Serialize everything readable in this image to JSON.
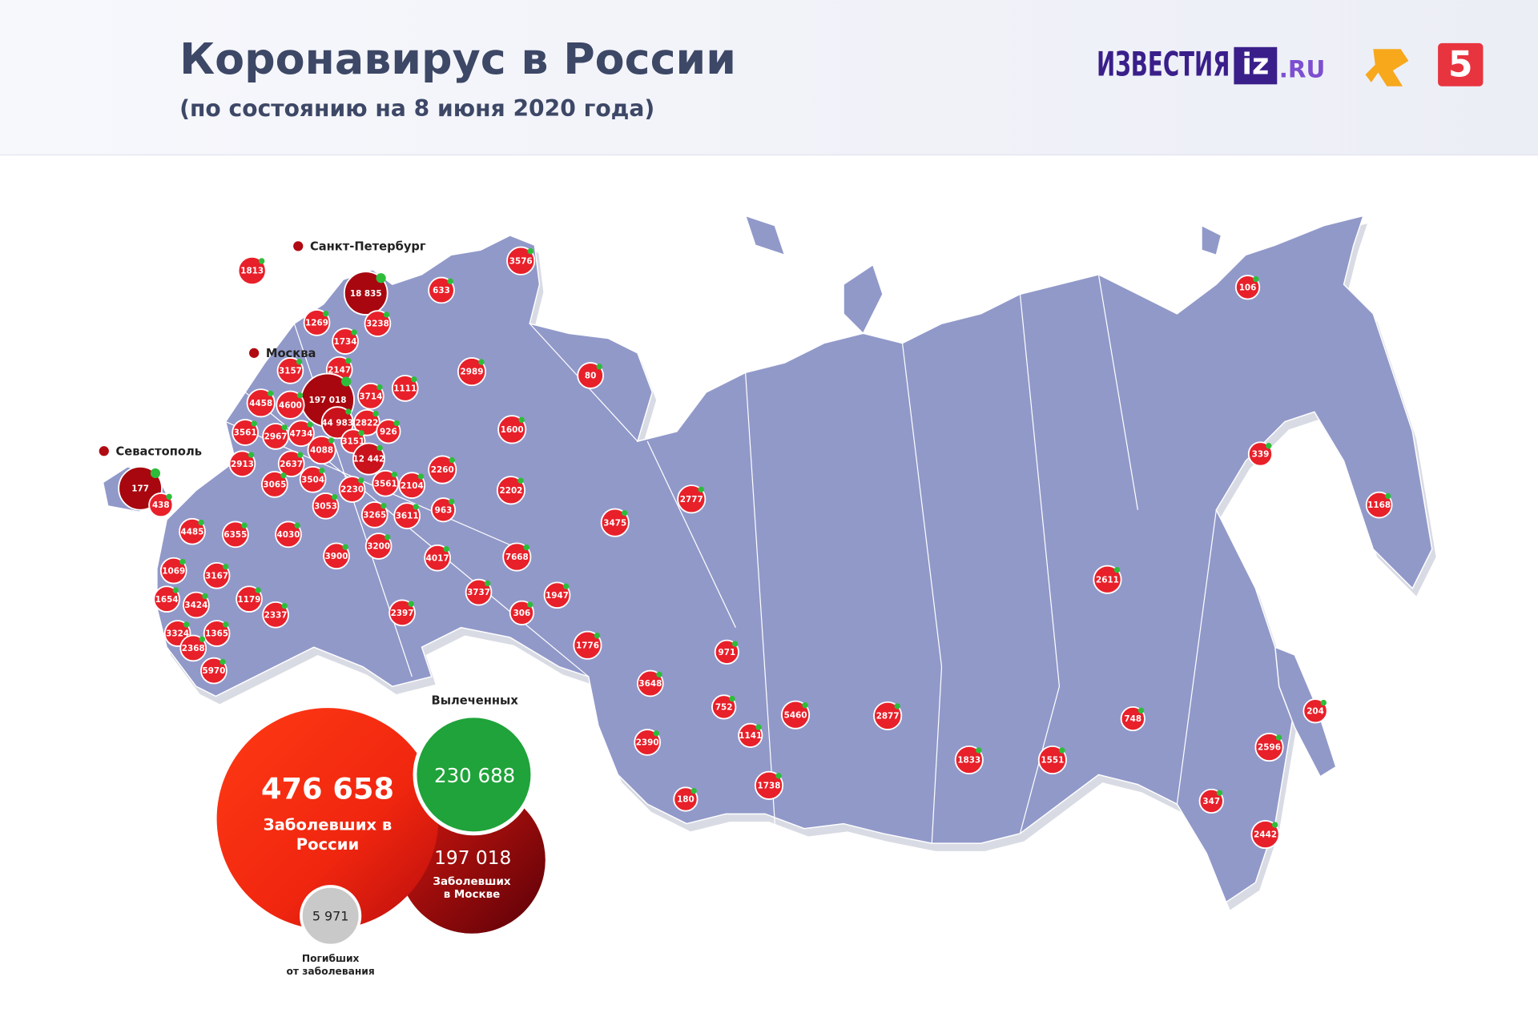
{
  "header": {
    "title": "Коронавирус в России",
    "subtitle": "(по состоянию на 8 июня 2020 года)",
    "logos": {
      "izvestia": "ИЗВЕСТИЯ",
      "iz": "iz",
      "ru": ".RU",
      "channel5": "5"
    }
  },
  "city_labels": [
    "Санкт-Петербург",
    "Москва",
    "Севастополь"
  ],
  "regions": [
    "1813",
    "18 835",
    "3238",
    "633",
    "3576",
    "1269",
    "1734",
    "3157",
    "2147",
    "197 018",
    "3714",
    "1111",
    "2989",
    "80",
    "4458",
    "4600",
    "44 983",
    "2822",
    "926",
    "1600",
    "3561",
    "2967",
    "4734",
    "3151",
    "4088",
    "12 442",
    "2913",
    "2637",
    "2260",
    "177",
    "438",
    "3065",
    "3504",
    "2230",
    "3561",
    "2104",
    "2202",
    "2777",
    "3053",
    "3265",
    "3611",
    "963",
    "3475",
    "4485",
    "6355",
    "4030",
    "3200",
    "3900",
    "4017",
    "7668",
    "1069",
    "3167",
    "1654",
    "3424",
    "1179",
    "2337",
    "3737",
    "1947",
    "2397",
    "306",
    "2611",
    "3324",
    "1365",
    "2368",
    "5970",
    "1776",
    "971",
    "3648",
    "752",
    "5460",
    "2877",
    "1141",
    "2390",
    "1833",
    "1551",
    "748",
    "1738",
    "180",
    "347",
    "2596",
    "2442",
    "204",
    "106",
    "339",
    "1168"
  ],
  "summary": {
    "russia_cases": "476 658",
    "russia_label": [
      "Заболевших в",
      "России"
    ],
    "recovered": "230 688",
    "recovered_label": "Вылеченных",
    "moscow_cases": "197 018",
    "moscow_label": [
      "Заболевших",
      "в Москве"
    ],
    "deaths": "5 971",
    "deaths_label": [
      "Погибших",
      "от заболевания"
    ]
  }
}
